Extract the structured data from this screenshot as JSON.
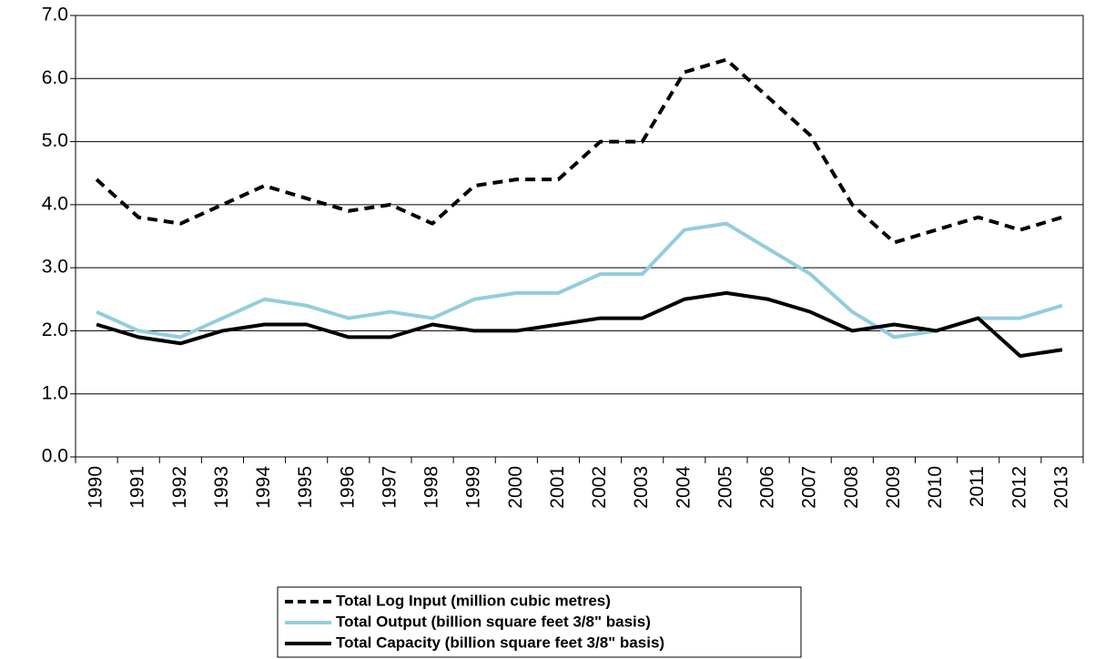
{
  "chart_data": {
    "type": "line",
    "categories": [
      "1990",
      "1991",
      "1992",
      "1993",
      "1994",
      "1995",
      "1996",
      "1997",
      "1998",
      "1999",
      "2000",
      "2001",
      "2002",
      "2003",
      "2004",
      "2005",
      "2006",
      "2007",
      "2008",
      "2009",
      "2010",
      "2011",
      "2012",
      "2013"
    ],
    "series": [
      {
        "name": "Total Log Input (million cubic metres)",
        "color": "#000000",
        "dash": true,
        "values": [
          4.4,
          3.8,
          3.7,
          4.0,
          4.3,
          4.1,
          3.9,
          4.0,
          3.7,
          4.3,
          4.4,
          4.4,
          5.0,
          5.0,
          6.1,
          6.3,
          5.7,
          5.1,
          4.0,
          3.4,
          3.6,
          3.8,
          3.6,
          3.8
        ]
      },
      {
        "name": "Total Output (billion square feet 3/8\" basis)",
        "color": "#93cddd",
        "dash": false,
        "values": [
          2.3,
          2.0,
          1.9,
          2.2,
          2.5,
          2.4,
          2.2,
          2.3,
          2.2,
          2.5,
          2.6,
          2.6,
          2.9,
          2.9,
          3.6,
          3.7,
          3.3,
          2.9,
          2.3,
          1.9,
          2.0,
          2.2,
          2.2,
          2.4
        ]
      },
      {
        "name": "Total Capacity (billion square feet 3/8\" basis)",
        "color": "#000000",
        "dash": false,
        "values": [
          2.1,
          1.9,
          1.8,
          2.0,
          2.1,
          2.1,
          1.9,
          1.9,
          2.1,
          2.0,
          2.0,
          2.1,
          2.2,
          2.2,
          2.5,
          2.6,
          2.5,
          2.3,
          2.0,
          2.1,
          2.0,
          2.2,
          1.6,
          1.7
        ]
      }
    ],
    "ylim": [
      0,
      7
    ],
    "yticks": [
      {
        "value": 0,
        "label": "0.0"
      },
      {
        "value": 1,
        "label": "1.0"
      },
      {
        "value": 2,
        "label": "2.0"
      },
      {
        "value": 3,
        "label": "3.0"
      },
      {
        "value": 4,
        "label": "4.0"
      },
      {
        "value": 5,
        "label": "5.0"
      },
      {
        "value": 6,
        "label": "6.0"
      },
      {
        "value": 7,
        "label": "7.0"
      }
    ],
    "grid": true,
    "legend": "bottom"
  }
}
